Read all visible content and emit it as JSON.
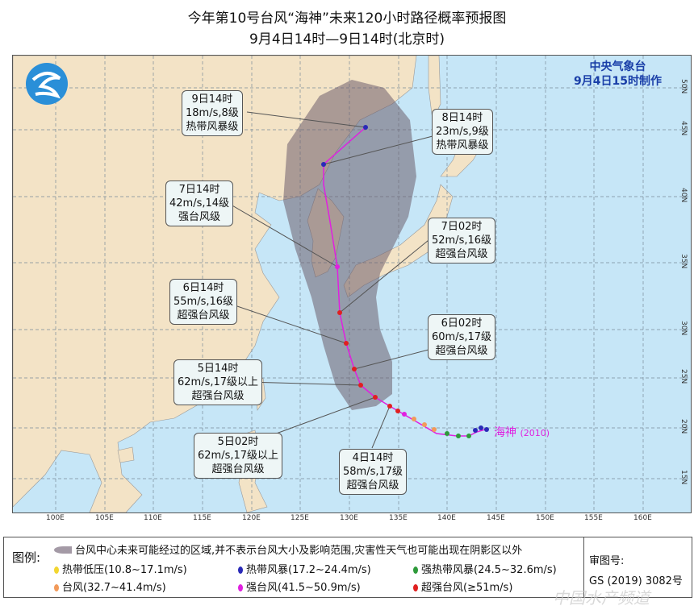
{
  "title": "今年第10号台风“海神”未来120小时路径概率预报图",
  "subtitle": "9月4日14时—9日14时(北京时)",
  "agency": {
    "name": "中央气象台",
    "issued": "9月4日15时制作"
  },
  "typhoon_label": "海神",
  "typhoon_code": "(2010)",
  "lon_ticks": [
    "100E",
    "105E",
    "110E",
    "115E",
    "120E",
    "125E",
    "130E",
    "135E",
    "140E",
    "145E",
    "150E",
    "155E",
    "160E"
  ],
  "lat_ticks": [
    "50N",
    "45N",
    "40N",
    "35N",
    "30N",
    "25N",
    "20N",
    "15N"
  ],
  "forecasts": [
    {
      "time": "9日14时",
      "wind": "18m/s,8级",
      "level": "热带风暴级"
    },
    {
      "time": "8日14时",
      "wind": "23m/s,9级",
      "level": "热带风暴级"
    },
    {
      "time": "7日14时",
      "wind": "42m/s,14级",
      "level": "强台风级"
    },
    {
      "time": "7日02时",
      "wind": "52m/s,16级",
      "level": "超强台风级"
    },
    {
      "time": "6日14时",
      "wind": "55m/s,16级",
      "level": "超强台风级"
    },
    {
      "time": "6日02时",
      "wind": "60m/s,17级",
      "level": "超强台风级"
    },
    {
      "time": "5日14时",
      "wind": "62m/s,17级以上",
      "level": "超强台风级"
    },
    {
      "time": "5日02时",
      "wind": "62m/s,17级以上",
      "level": "超强台风级"
    },
    {
      "time": "4日14时",
      "wind": "58m/s,17级",
      "level": "超强台风级"
    }
  ],
  "legend": {
    "title": "图例:",
    "cone": "台风中心未来可能经过的区域,并不表示台风大小及影响范围,灾害性天气也可能出现在阴影区以外",
    "items": [
      {
        "label": "热带低压(10.8~17.1m/s)",
        "color": "#f2d630"
      },
      {
        "label": "热带风暴(17.2~24.4m/s)",
        "color": "#2a2ab8"
      },
      {
        "label": "强热带风暴(24.5~32.6m/s)",
        "color": "#2e9a3a"
      },
      {
        "label": "台风(32.7~41.4m/s)",
        "color": "#f29a5a"
      },
      {
        "label": "强台风(41.5~50.9m/s)",
        "color": "#e020e0"
      },
      {
        "label": "超强台风(≥51m/s)",
        "color": "#e02020"
      }
    ],
    "review_label": "审图号:",
    "review_no": "GS (2019) 3082号"
  },
  "watermark": "中国水产频道"
}
